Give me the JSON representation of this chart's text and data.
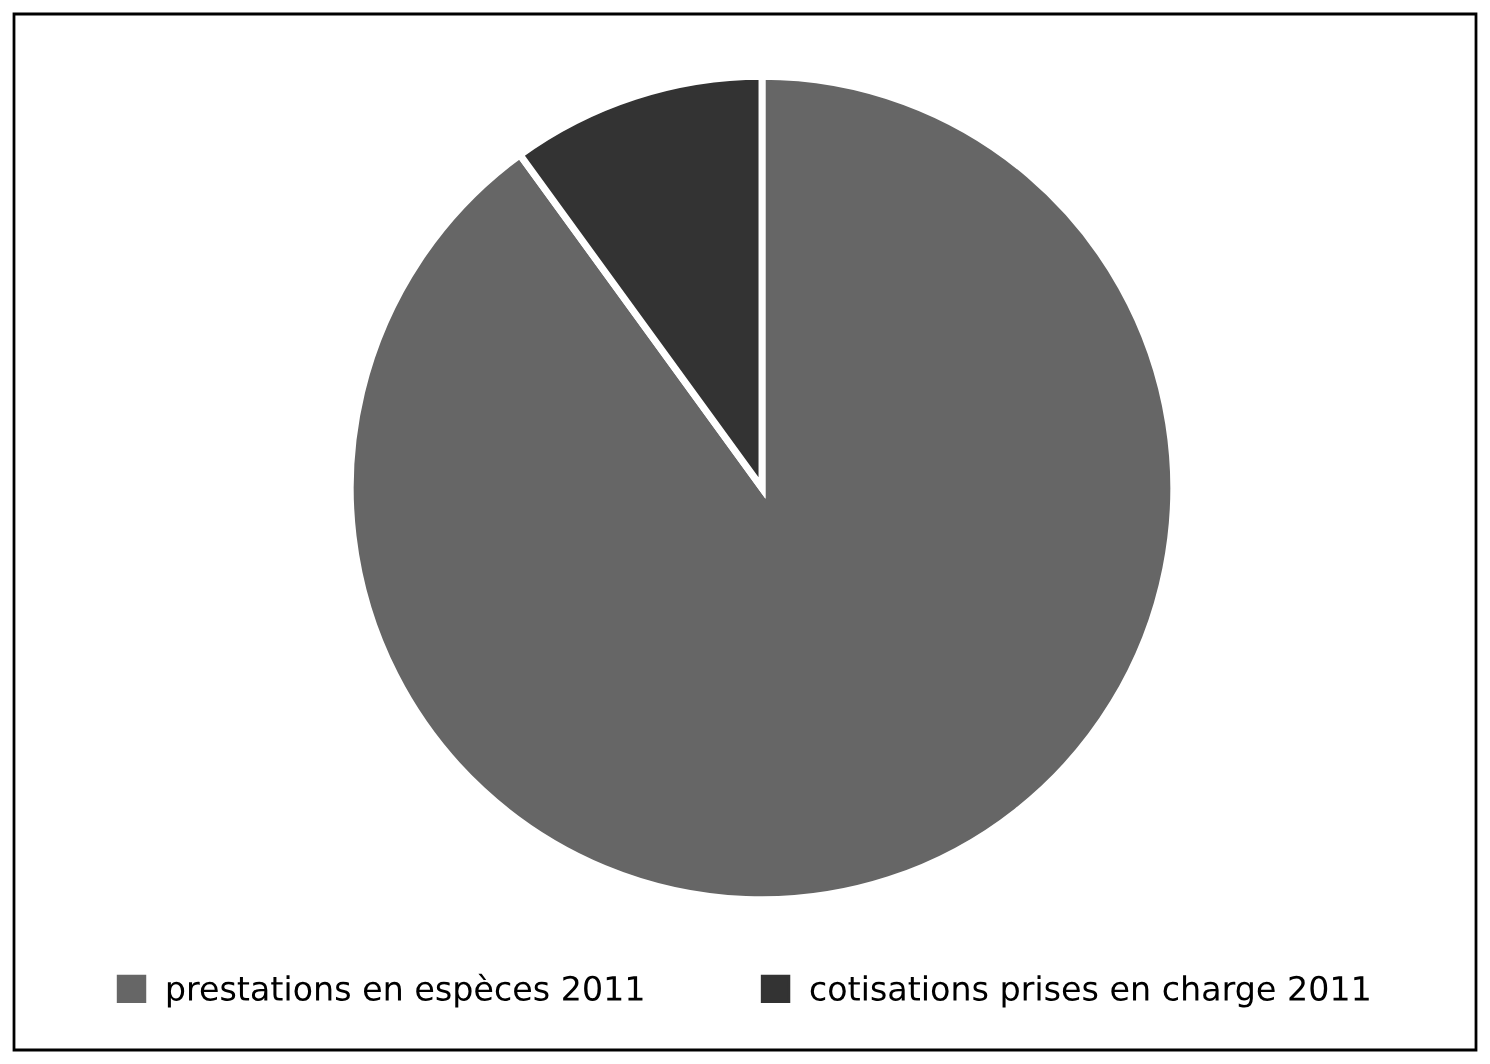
{
  "chart_data": {
    "type": "pie",
    "categories": [
      "prestations en espèces 2011",
      "cotisations prises en charge 2011"
    ],
    "values": [
      90,
      10
    ],
    "colors": [
      "#666666",
      "#333333"
    ],
    "legend": "bottom"
  }
}
